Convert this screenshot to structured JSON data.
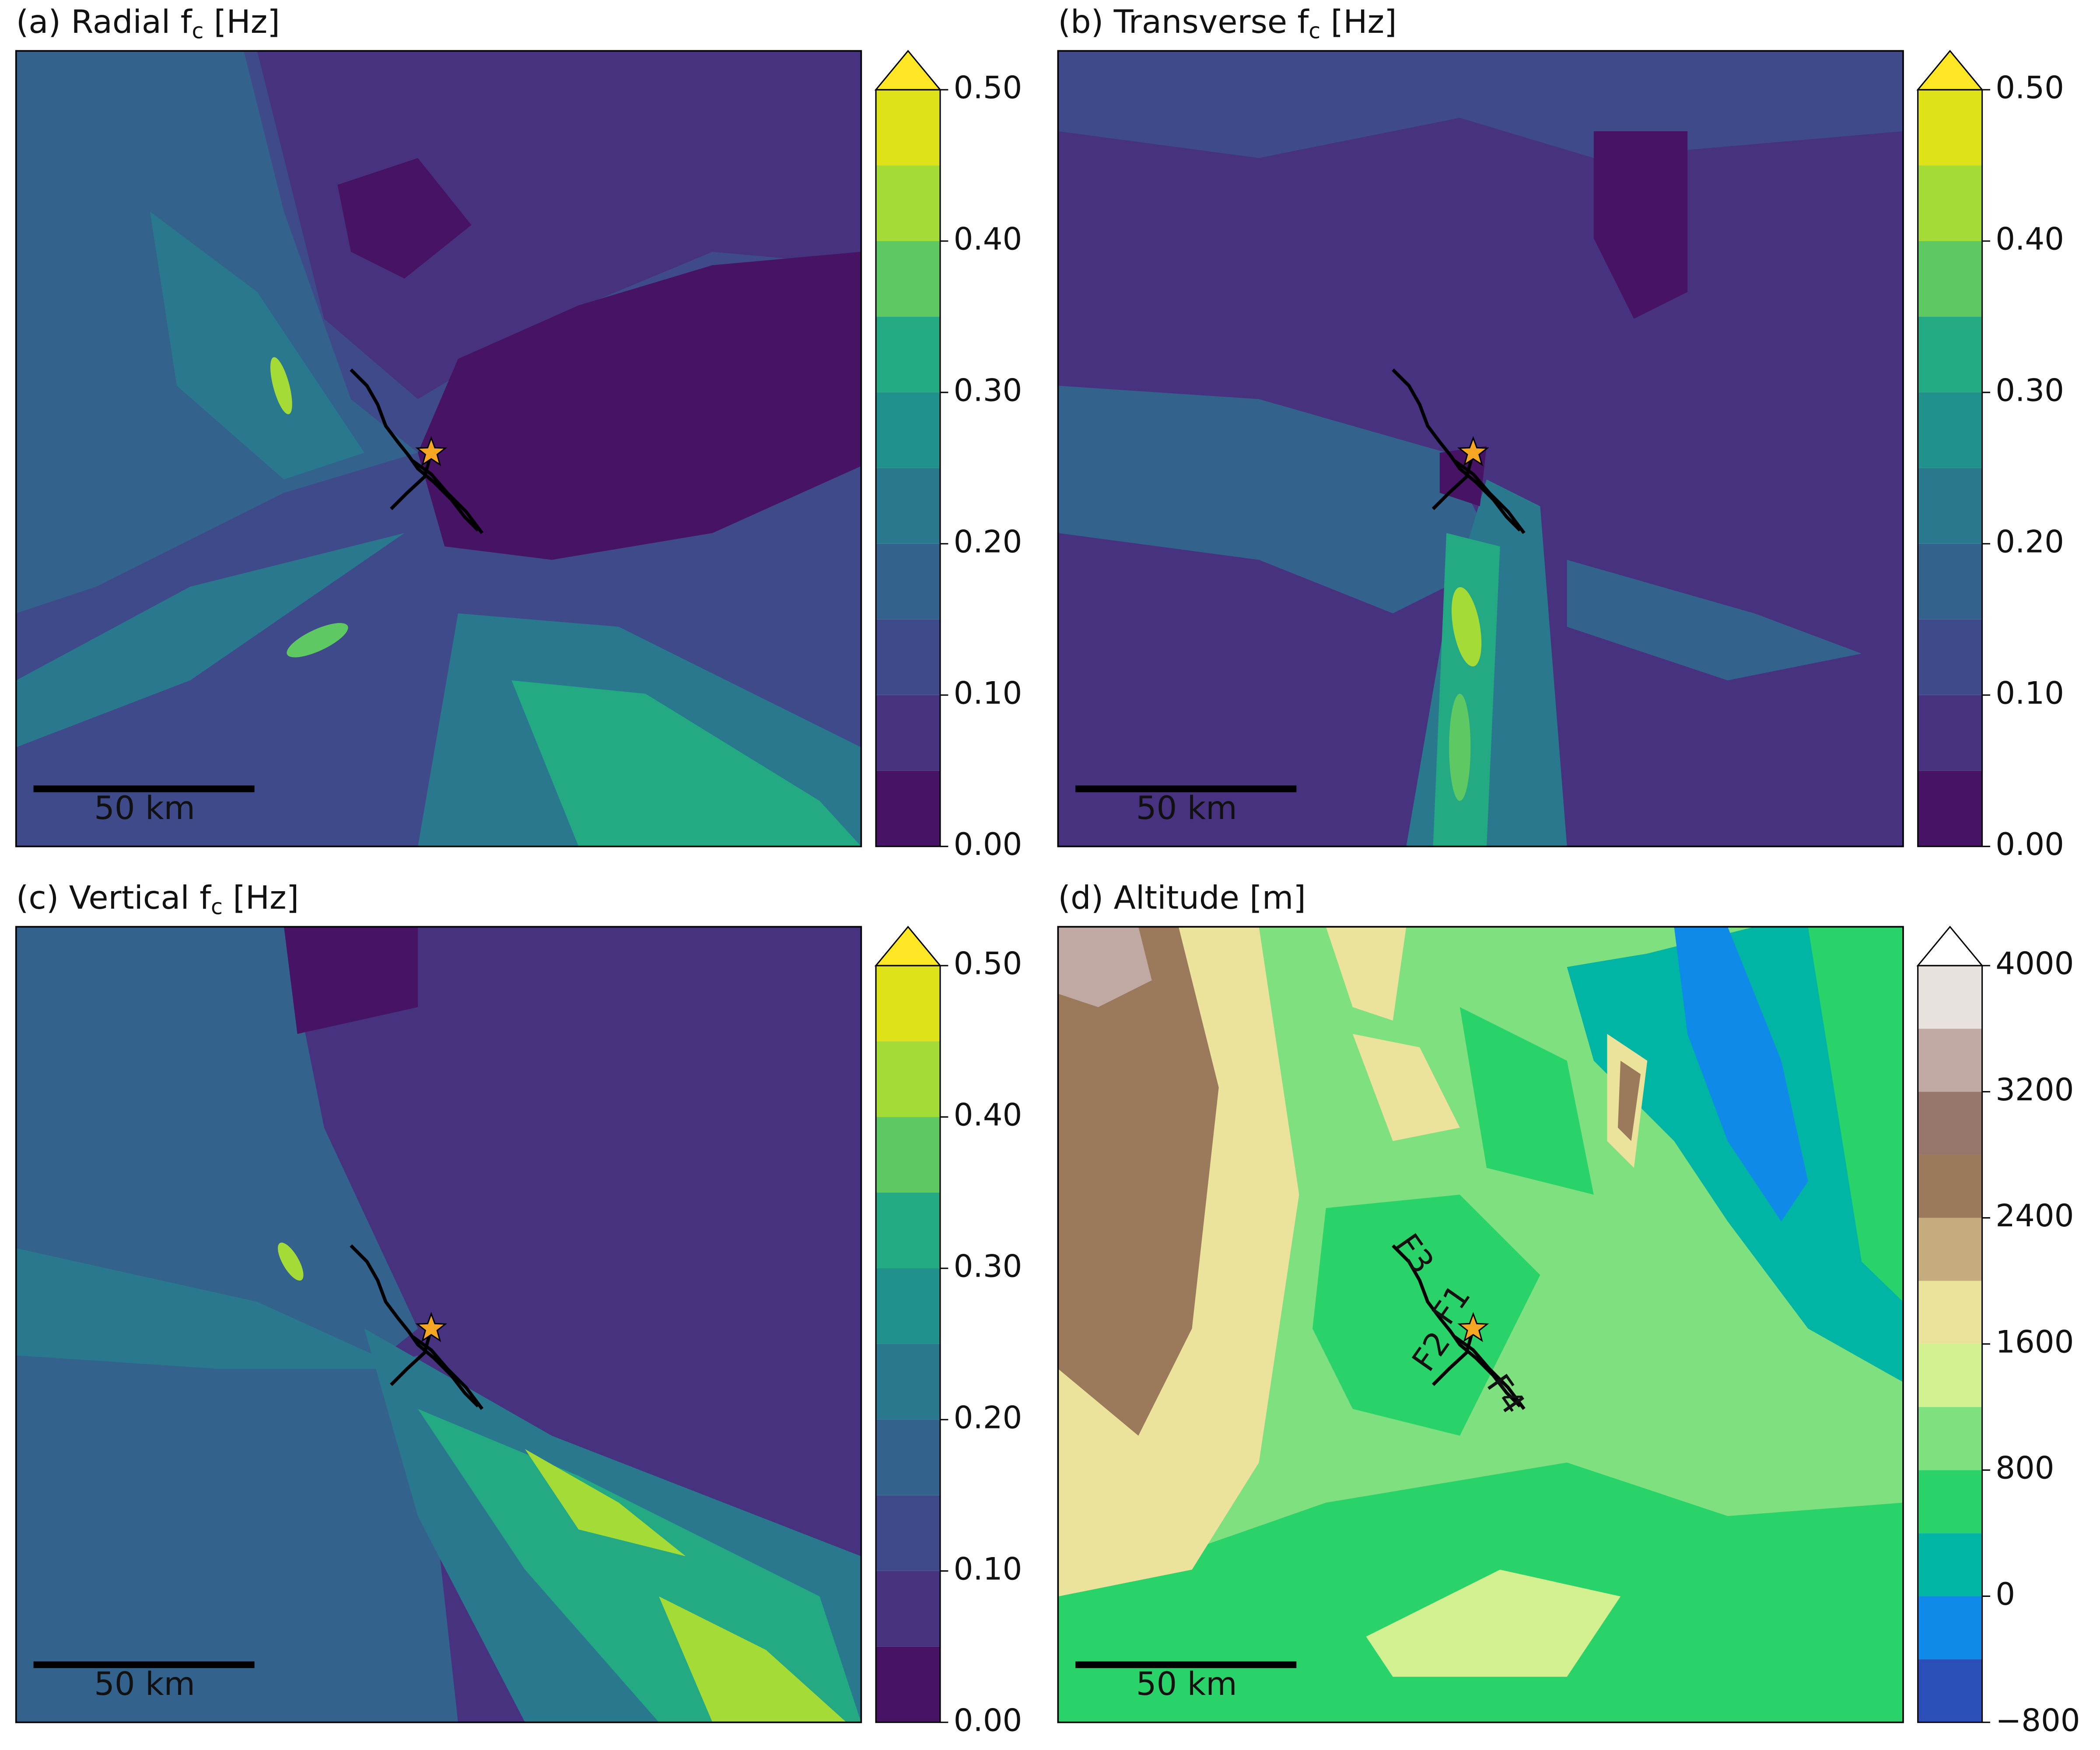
{
  "chart_data": [
    {
      "type": "contour",
      "title": "(a) Radial f",
      "title_sub": "c",
      "title_end": " [Hz]",
      "scale_bar": "50 km",
      "levels": [
        0,
        0.05,
        0.1,
        0.15,
        0.2,
        0.25,
        0.3,
        0.35,
        0.4,
        0.45,
        0.5
      ],
      "colors": [
        "#471365",
        "#46327e",
        "#3e4a89",
        "#33638d",
        "#2a788e",
        "#21918c",
        "#24aa83",
        "#5ec962",
        "#a5db36",
        "#dde318"
      ],
      "extend_color": "#fde725",
      "cticks": [
        {
          "value": 0,
          "label": "0.00"
        },
        {
          "value": 0.1,
          "label": "0.10"
        },
        {
          "value": 0.2,
          "label": "0.20"
        },
        {
          "value": 0.3,
          "label": "0.30"
        },
        {
          "value": 0.4,
          "label": "0.40"
        },
        {
          "value": 0.5,
          "label": "0.50"
        }
      ]
    },
    {
      "type": "contour",
      "title": "(b) Transverse f",
      "title_sub": "c",
      "title_end": " [Hz]",
      "scale_bar": "50 km",
      "levels": [
        0,
        0.05,
        0.1,
        0.15,
        0.2,
        0.25,
        0.3,
        0.35,
        0.4,
        0.45,
        0.5
      ],
      "colors": [
        "#471365",
        "#46327e",
        "#3e4a89",
        "#33638d",
        "#2a788e",
        "#21918c",
        "#24aa83",
        "#5ec962",
        "#a5db36",
        "#dde318"
      ],
      "extend_color": "#fde725",
      "cticks": [
        {
          "value": 0,
          "label": "0.00"
        },
        {
          "value": 0.1,
          "label": "0.10"
        },
        {
          "value": 0.2,
          "label": "0.20"
        },
        {
          "value": 0.3,
          "label": "0.30"
        },
        {
          "value": 0.4,
          "label": "0.40"
        },
        {
          "value": 0.5,
          "label": "0.50"
        }
      ]
    },
    {
      "type": "contour",
      "title": "(c) Vertical f",
      "title_sub": "c",
      "title_end": " [Hz]",
      "scale_bar": "50 km",
      "levels": [
        0,
        0.05,
        0.1,
        0.15,
        0.2,
        0.25,
        0.3,
        0.35,
        0.4,
        0.45,
        0.5
      ],
      "colors": [
        "#471365",
        "#46327e",
        "#3e4a89",
        "#33638d",
        "#2a788e",
        "#21918c",
        "#24aa83",
        "#5ec962",
        "#a5db36",
        "#dde318"
      ],
      "extend_color": "#fde725",
      "cticks": [
        {
          "value": 0,
          "label": "0.00"
        },
        {
          "value": 0.1,
          "label": "0.10"
        },
        {
          "value": 0.2,
          "label": "0.20"
        },
        {
          "value": 0.3,
          "label": "0.30"
        },
        {
          "value": 0.4,
          "label": "0.40"
        },
        {
          "value": 0.5,
          "label": "0.50"
        }
      ]
    },
    {
      "type": "contour",
      "title": "(d) Altitude [m]",
      "scale_bar": "50 km",
      "levels": [
        -800,
        -400,
        0,
        400,
        800,
        1200,
        1600,
        2000,
        2400,
        2800,
        3200,
        3600,
        4000
      ],
      "colors": [
        "#2a50b8",
        "#0f8ae8",
        "#00b5a3",
        "#2ad36a",
        "#7ee07e",
        "#d2f090",
        "#ebe29c",
        "#c4ac7c",
        "#9a7a5a",
        "#97766c",
        "#bfa9a2",
        "#e8e2df"
      ],
      "extend_color": "#ffffff",
      "cticks": [
        {
          "value": -800,
          "label": "−800"
        },
        0,
        800,
        1600,
        2400,
        3200,
        4000
      ],
      "annotations": [
        "F1",
        "F2",
        "F3",
        "F4"
      ]
    }
  ]
}
